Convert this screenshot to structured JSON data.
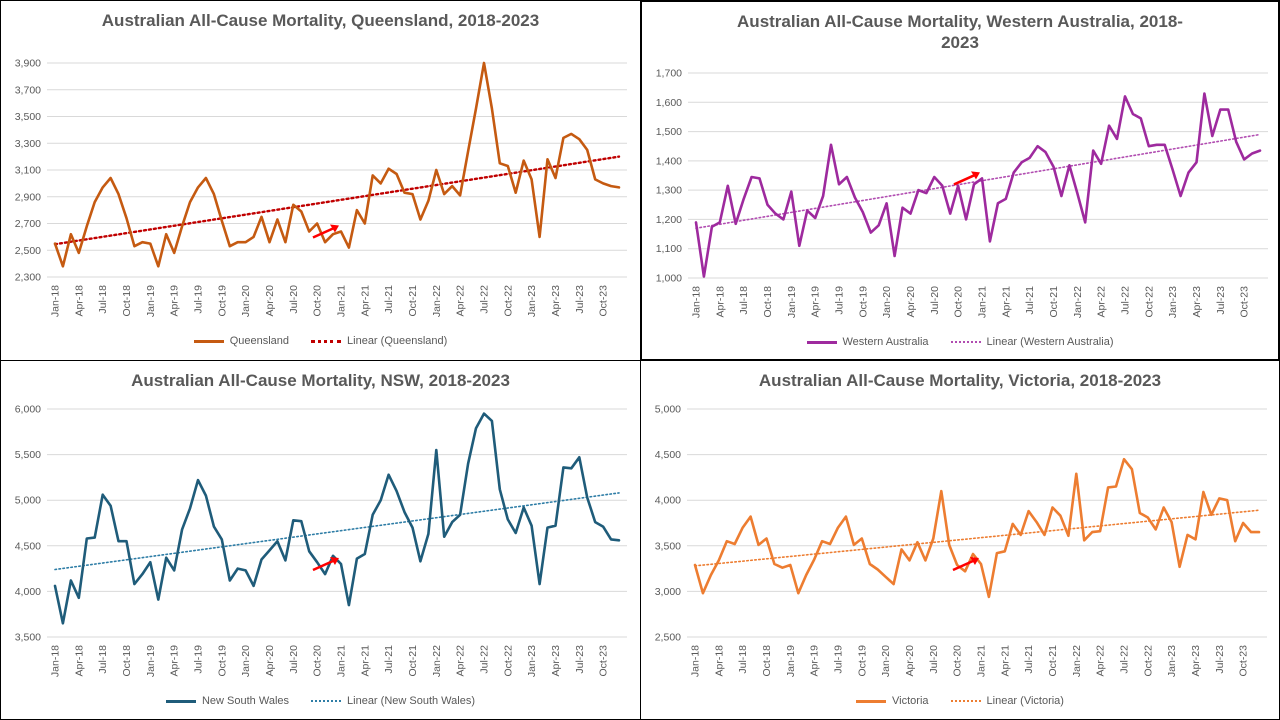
{
  "chart_data": [
    {
      "type": "line",
      "title": "Australian All-Cause Mortality, Queensland, 2018-2023",
      "ylim": [
        2300,
        3900
      ],
      "yticks": [
        2300,
        2500,
        2700,
        2900,
        3100,
        3300,
        3500,
        3700,
        3900
      ],
      "ytick_labels": [
        "2,300",
        "2,500",
        "2,700",
        "2,900",
        "3,100",
        "3,300",
        "3,500",
        "3,700",
        "3,900"
      ],
      "xtick_labels": [
        "Jan-18",
        "Apr-18",
        "Jul-18",
        "Oct-18",
        "Jan-19",
        "Apr-19",
        "Jul-19",
        "Oct-19",
        "Jan-20",
        "Apr-20",
        "Jul-20",
        "Oct-20",
        "Jan-21",
        "Apr-21",
        "Jul-21",
        "Oct-21",
        "Jan-22",
        "Apr-22",
        "Jul-22",
        "Oct-22",
        "Jan-23",
        "Apr-23",
        "Jul-23",
        "Oct-23"
      ],
      "grid": "horizontal",
      "legend_position": "bottom",
      "annotation": {
        "type": "arrow",
        "points_to": "Jan-21",
        "color": "#ff0000"
      },
      "series": [
        {
          "name": "Queensland",
          "color": "#c55a11",
          "style": "solid",
          "values": [
            2550,
            2380,
            2620,
            2480,
            2680,
            2860,
            2970,
            3040,
            2920,
            2740,
            2530,
            2560,
            2550,
            2380,
            2620,
            2480,
            2680,
            2860,
            2970,
            3040,
            2920,
            2720,
            2530,
            2560,
            2560,
            2600,
            2750,
            2560,
            2730,
            2560,
            2840,
            2790,
            2640,
            2700,
            2560,
            2620,
            2640,
            2520,
            2800,
            2700,
            3060,
            3000,
            3110,
            3070,
            2930,
            2920,
            2730,
            2870,
            3100,
            2920,
            2980,
            2910,
            3240,
            3560,
            3900,
            3560,
            3150,
            3130,
            2930,
            3170,
            3030,
            2600,
            3180,
            3040,
            3340,
            3370,
            3330,
            3250,
            3030,
            3000,
            2980,
            2970
          ]
        },
        {
          "name": "Linear (Queensland)",
          "color": "#c00000",
          "style": "dotted",
          "trend": [
            2545,
            3200
          ]
        }
      ]
    },
    {
      "type": "line",
      "title": "Australian All-Cause Mortality, Western Australia, 2018-2023",
      "ylim": [
        1000,
        1700
      ],
      "yticks": [
        1000,
        1100,
        1200,
        1300,
        1400,
        1500,
        1600,
        1700
      ],
      "ytick_labels": [
        "1,000",
        "1,100",
        "1,200",
        "1,300",
        "1,400",
        "1,500",
        "1,600",
        "1,700"
      ],
      "xtick_labels": [
        "Jan-18",
        "Apr-18",
        "Jul-18",
        "Oct-18",
        "Jan-19",
        "Apr-19",
        "Jul-19",
        "Oct-19",
        "Jan-20",
        "Apr-20",
        "Jul-20",
        "Oct-20",
        "Jan-21",
        "Apr-21",
        "Jul-21",
        "Oct-21",
        "Jan-22",
        "Apr-22",
        "Jul-22",
        "Oct-22",
        "Jan-23",
        "Apr-23",
        "Jul-23",
        "Oct-23"
      ],
      "grid": "horizontal",
      "legend_position": "bottom",
      "annotation": {
        "type": "arrow",
        "points_to": "Jan-21",
        "color": "#ff0000"
      },
      "series": [
        {
          "name": "Western Australia",
          "color": "#9e2a9e",
          "style": "solid",
          "values": [
            1190,
            1005,
            1175,
            1190,
            1315,
            1185,
            1270,
            1345,
            1340,
            1250,
            1220,
            1200,
            1295,
            1110,
            1230,
            1205,
            1280,
            1455,
            1320,
            1345,
            1275,
            1225,
            1155,
            1180,
            1255,
            1075,
            1240,
            1220,
            1300,
            1290,
            1345,
            1315,
            1220,
            1315,
            1200,
            1320,
            1340,
            1125,
            1255,
            1270,
            1360,
            1395,
            1410,
            1450,
            1430,
            1380,
            1280,
            1385,
            1290,
            1190,
            1435,
            1390,
            1520,
            1475,
            1620,
            1560,
            1545,
            1450,
            1455,
            1455,
            1370,
            1280,
            1360,
            1395,
            1630,
            1485,
            1575,
            1575,
            1465,
            1405,
            1425,
            1435
          ]
        },
        {
          "name": "Linear (Western Australia)",
          "color": "#b14db1",
          "style": "dotted",
          "trend": [
            1170,
            1490
          ]
        }
      ]
    },
    {
      "type": "line",
      "title": "Australian All-Cause Mortality, NSW, 2018-2023",
      "ylim": [
        3500,
        6000
      ],
      "yticks": [
        3500,
        4000,
        4500,
        5000,
        5500,
        6000
      ],
      "ytick_labels": [
        "3,500",
        "4,000",
        "4,500",
        "5,000",
        "5,500",
        "6,000"
      ],
      "xtick_labels": [
        "Jan-18",
        "Apr-18",
        "Jul-18",
        "Oct-18",
        "Jan-19",
        "Apr-19",
        "Jul-19",
        "Oct-19",
        "Jan-20",
        "Apr-20",
        "Jul-20",
        "Oct-20",
        "Jan-21",
        "Apr-21",
        "Jul-21",
        "Oct-21",
        "Jan-22",
        "Apr-22",
        "Jul-22",
        "Oct-22",
        "Jan-23",
        "Apr-23",
        "Jul-23",
        "Oct-23"
      ],
      "grid": "horizontal",
      "legend_position": "bottom",
      "annotation": {
        "type": "arrow",
        "points_to": "Jan-21",
        "color": "#ff0000"
      },
      "series": [
        {
          "name": "New South Wales",
          "color": "#1f5c7a",
          "style": "solid",
          "values": [
            4060,
            3650,
            4120,
            3930,
            4580,
            4590,
            5060,
            4940,
            4550,
            4550,
            4080,
            4190,
            4320,
            3910,
            4370,
            4230,
            4680,
            4910,
            5220,
            5050,
            4710,
            4570,
            4120,
            4250,
            4230,
            4060,
            4350,
            4450,
            4550,
            4340,
            4780,
            4770,
            4440,
            4320,
            4190,
            4390,
            4300,
            3850,
            4360,
            4410,
            4840,
            5000,
            5280,
            5100,
            4870,
            4700,
            4330,
            4630,
            5550,
            4600,
            4760,
            4840,
            5400,
            5790,
            5950,
            5870,
            5120,
            4790,
            4640,
            4920,
            4720,
            4080,
            4700,
            4720,
            5360,
            5350,
            5470,
            5030,
            4760,
            4710,
            4570,
            4560
          ]
        },
        {
          "name": "Linear (New South Wales)",
          "color": "#2e7da6",
          "style": "dotted",
          "trend": [
            4240,
            5080
          ]
        }
      ]
    },
    {
      "type": "line",
      "title": "Australian All-Cause Mortality, Victoria, 2018-2023",
      "ylim": [
        2500,
        5000
      ],
      "yticks": [
        2500,
        3000,
        3500,
        4000,
        4500,
        5000
      ],
      "ytick_labels": [
        "2,500",
        "3,000",
        "3,500",
        "4,000",
        "4,500",
        "5,000"
      ],
      "xtick_labels": [
        "Jan-18",
        "Apr-18",
        "Jul-18",
        "Oct-18",
        "Jan-19",
        "Apr-19",
        "Jul-19",
        "Oct-19",
        "Jan-20",
        "Apr-20",
        "Jul-20",
        "Oct-20",
        "Jan-21",
        "Apr-21",
        "Jul-21",
        "Oct-21",
        "Jan-22",
        "Apr-22",
        "Jul-22",
        "Oct-22",
        "Jan-23",
        "Apr-23",
        "Jul-23",
        "Oct-23"
      ],
      "grid": "horizontal",
      "legend_position": "bottom",
      "annotation": {
        "type": "arrow",
        "points_to": "Jan-21",
        "color": "#ff0000"
      },
      "series": [
        {
          "name": "Victoria",
          "color": "#ed7d31",
          "style": "solid",
          "values": [
            3290,
            2980,
            3180,
            3340,
            3550,
            3520,
            3700,
            3820,
            3510,
            3580,
            3300,
            3260,
            3290,
            2980,
            3180,
            3350,
            3550,
            3520,
            3700,
            3820,
            3510,
            3580,
            3300,
            3240,
            3160,
            3080,
            3460,
            3340,
            3540,
            3340,
            3580,
            4100,
            3510,
            3290,
            3220,
            3410,
            3300,
            2940,
            3420,
            3440,
            3740,
            3620,
            3880,
            3760,
            3620,
            3920,
            3830,
            3610,
            4290,
            3560,
            3650,
            3660,
            4140,
            4150,
            4450,
            4340,
            3860,
            3810,
            3680,
            3920,
            3760,
            3270,
            3620,
            3570,
            4090,
            3840,
            4020,
            4000,
            3550,
            3750,
            3650,
            3650
          ]
        },
        {
          "name": "Linear (Victoria)",
          "color": "#ed7d31",
          "style": "dotted",
          "trend": [
            3280,
            3890
          ]
        }
      ]
    }
  ]
}
